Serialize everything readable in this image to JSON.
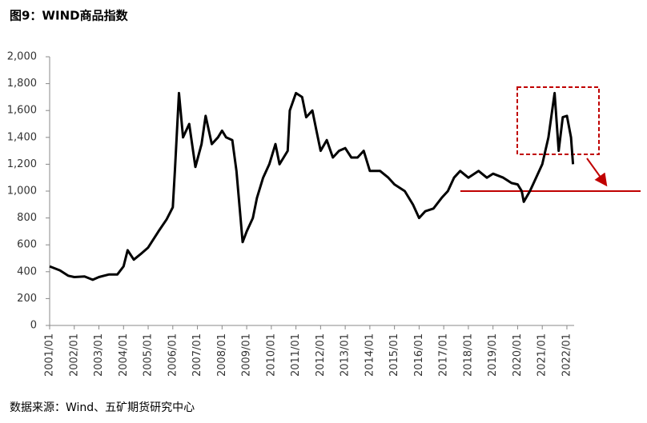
{
  "chart_data": {
    "type": "line",
    "title": "图9：WIND商品指数",
    "source": "数据来源：Wind、五矿期货研究中心",
    "x": [
      "2001/01",
      "2001/06",
      "2001/10",
      "2002/01",
      "2002/06",
      "2002/10",
      "2003/01",
      "2003/06",
      "2003/10",
      "2004/01",
      "2004/03",
      "2004/06",
      "2004/10",
      "2005/01",
      "2005/06",
      "2005/10",
      "2006/01",
      "2006/02",
      "2006/04",
      "2006/06",
      "2006/09",
      "2006/12",
      "2007/03",
      "2007/05",
      "2007/08",
      "2007/11",
      "2008/01",
      "2008/03",
      "2008/06",
      "2008/08",
      "2008/10",
      "2008/11",
      "2009/01",
      "2009/04",
      "2009/06",
      "2009/09",
      "2009/12",
      "2010/03",
      "2010/05",
      "2010/09",
      "2010/10",
      "2011/01",
      "2011/04",
      "2011/06",
      "2011/09",
      "2011/11",
      "2012/01",
      "2012/04",
      "2012/07",
      "2012/10",
      "2013/01",
      "2013/04",
      "2013/07",
      "2013/10",
      "2014/01",
      "2014/06",
      "2014/10",
      "2015/01",
      "2015/06",
      "2015/10",
      "2016/01",
      "2016/04",
      "2016/08",
      "2016/12",
      "2017/03",
      "2017/06",
      "2017/09",
      "2018/01",
      "2018/06",
      "2018/10",
      "2019/01",
      "2019/06",
      "2019/10",
      "2020/01",
      "2020/03",
      "2020/04",
      "2020/07",
      "2020/10",
      "2021/01",
      "2021/04",
      "2021/07",
      "2021/09",
      "2021/11",
      "2022/01",
      "2022/03",
      "2022/04"
    ],
    "values": [
      440,
      410,
      370,
      360,
      365,
      340,
      360,
      380,
      380,
      440,
      560,
      490,
      540,
      580,
      700,
      790,
      880,
      1150,
      1730,
      1400,
      1500,
      1180,
      1350,
      1560,
      1350,
      1400,
      1450,
      1400,
      1380,
      1150,
      800,
      620,
      700,
      800,
      950,
      1100,
      1200,
      1350,
      1200,
      1300,
      1600,
      1730,
      1700,
      1550,
      1600,
      1450,
      1300,
      1380,
      1250,
      1300,
      1320,
      1250,
      1250,
      1300,
      1150,
      1150,
      1100,
      1050,
      1000,
      900,
      800,
      850,
      870,
      950,
      1000,
      1100,
      1150,
      1100,
      1150,
      1100,
      1130,
      1100,
      1060,
      1050,
      1000,
      920,
      1000,
      1100,
      1200,
      1400,
      1730,
      1300,
      1550,
      1560,
      1400,
      1200
    ],
    "color": "#000000",
    "reference_line": 1000,
    "reference_color": "#c00000",
    "xticks": [
      "2001/01",
      "2002/01",
      "2003/01",
      "2004/01",
      "2005/01",
      "2006/01",
      "2007/01",
      "2008/01",
      "2009/01",
      "2010/01",
      "2011/01",
      "2012/01",
      "2013/01",
      "2014/01",
      "2015/01",
      "2016/01",
      "2017/01",
      "2018/01",
      "2019/01",
      "2020/01",
      "2021/01",
      "2022/01"
    ],
    "ylim": [
      0,
      2000
    ],
    "yticks": [
      0,
      200,
      400,
      600,
      800,
      {
        "value": 1000,
        "label": "1,000"
      },
      {
        "value": 1200,
        "label": "1,200"
      },
      {
        "value": 1400,
        "label": "1,400"
      },
      {
        "value": 1600,
        "label": "1,600"
      },
      {
        "value": 1800,
        "label": "1,800"
      },
      {
        "value": 2000,
        "label": "2,000"
      }
    ],
    "grid": false
  }
}
